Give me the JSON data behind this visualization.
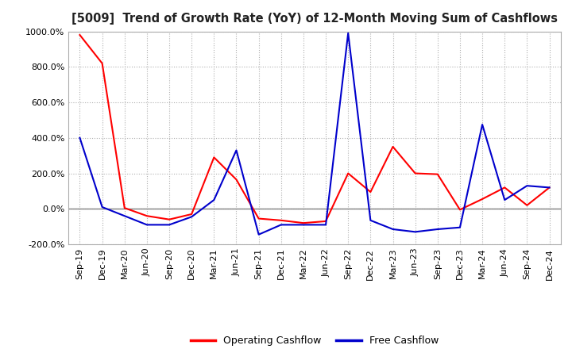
{
  "title": "[5009]  Trend of Growth Rate (YoY) of 12-Month Moving Sum of Cashflows",
  "ylim": [
    -200,
    1000
  ],
  "yticks": [
    -200,
    0,
    200,
    400,
    600,
    800,
    1000
  ],
  "background_color": "#ffffff",
  "grid_color": "#b0b0b0",
  "zero_line_color": "#808080",
  "legend_labels": [
    "Operating Cashflow",
    "Free Cashflow"
  ],
  "line_colors": [
    "#ff0000",
    "#0000cc"
  ],
  "x_labels": [
    "Sep-19",
    "Dec-19",
    "Mar-20",
    "Jun-20",
    "Sep-20",
    "Dec-20",
    "Mar-21",
    "Jun-21",
    "Sep-21",
    "Dec-21",
    "Mar-22",
    "Jun-22",
    "Sep-22",
    "Dec-22",
    "Mar-23",
    "Jun-23",
    "Sep-23",
    "Dec-23",
    "Mar-24",
    "Jun-24",
    "Sep-24",
    "Dec-24"
  ],
  "operating_cashflow": [
    980,
    820,
    5,
    -40,
    -60,
    -30,
    290,
    165,
    -55,
    -65,
    -80,
    -70,
    200,
    95,
    350,
    200,
    195,
    -5,
    55,
    120,
    20,
    120
  ],
  "free_cashflow": [
    400,
    10,
    -40,
    -90,
    -90,
    -45,
    50,
    330,
    -145,
    -90,
    -90,
    -90,
    990,
    -65,
    -115,
    -130,
    -115,
    -105,
    475,
    50,
    130,
    120
  ]
}
